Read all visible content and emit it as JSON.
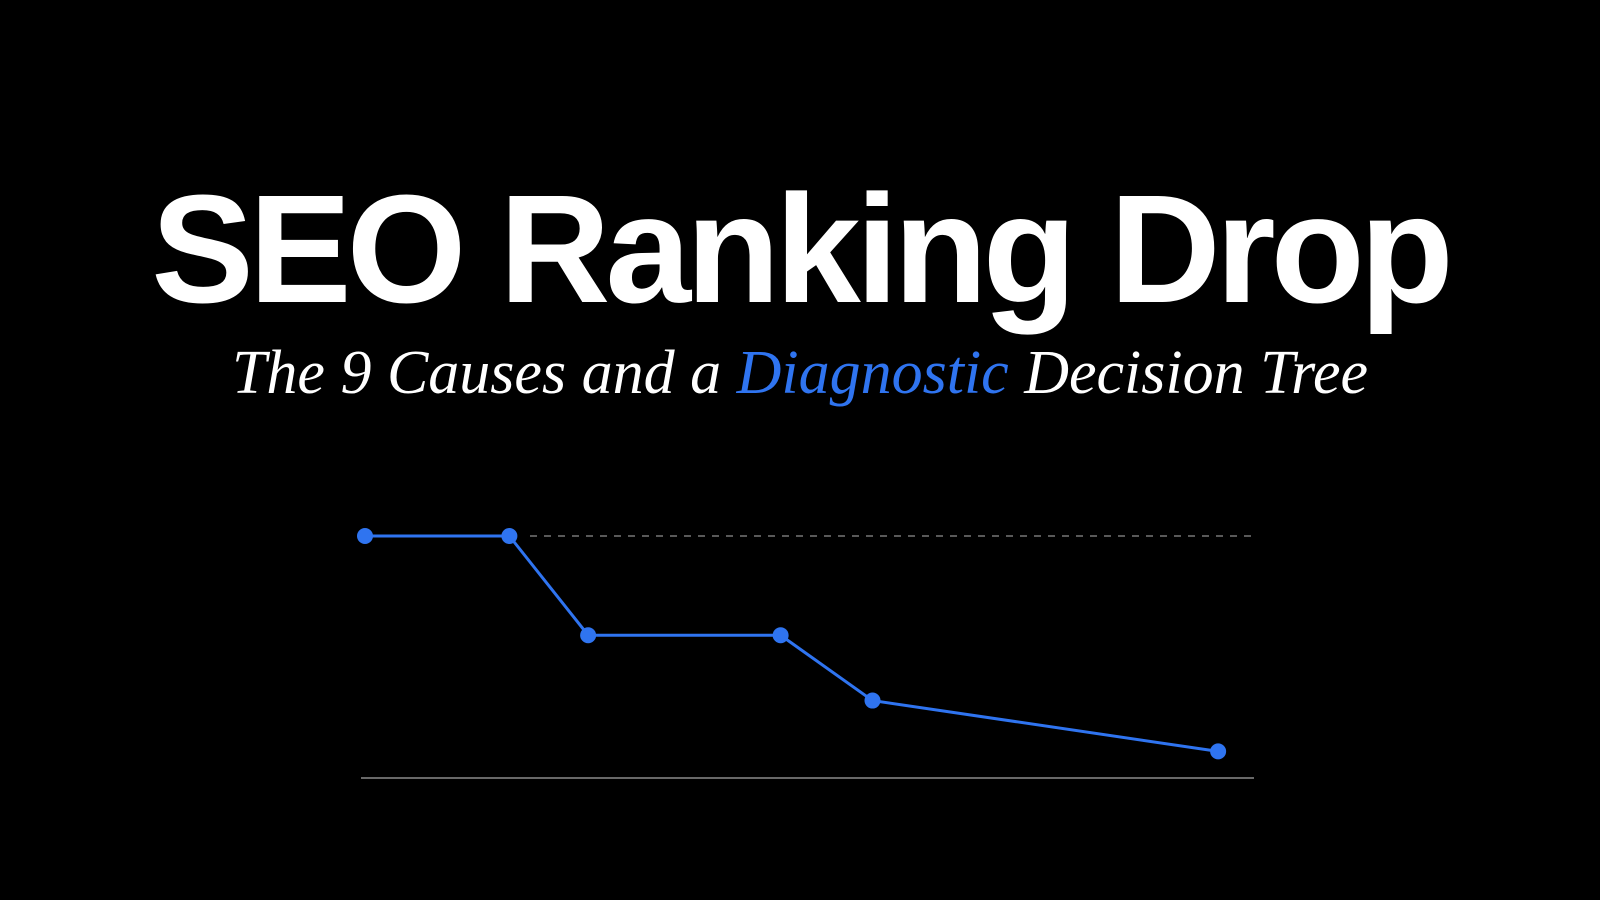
{
  "headline": "SEO Ranking Drop",
  "subtitle": {
    "before": "The 9 Causes and a ",
    "highlight": "Diagnostic",
    "after": " Decision Tree"
  },
  "colors": {
    "background": "#000000",
    "text": "#ffffff",
    "accent": "#2f74f0",
    "reference_line": "#777777",
    "baseline": "#8a8a8a"
  },
  "chart_data": {
    "type": "line",
    "title": "",
    "xlabel": "",
    "ylabel": "",
    "grid": false,
    "xlim": [
      0,
      10
    ],
    "ylim": [
      0,
      100
    ],
    "reference_line": 100,
    "series": [
      {
        "x": [
          0,
          1.65,
          2.55,
          4.75,
          5.8,
          9.75
        ],
        "values": [
          100,
          100,
          59,
          59,
          32,
          11
        ]
      }
    ]
  }
}
